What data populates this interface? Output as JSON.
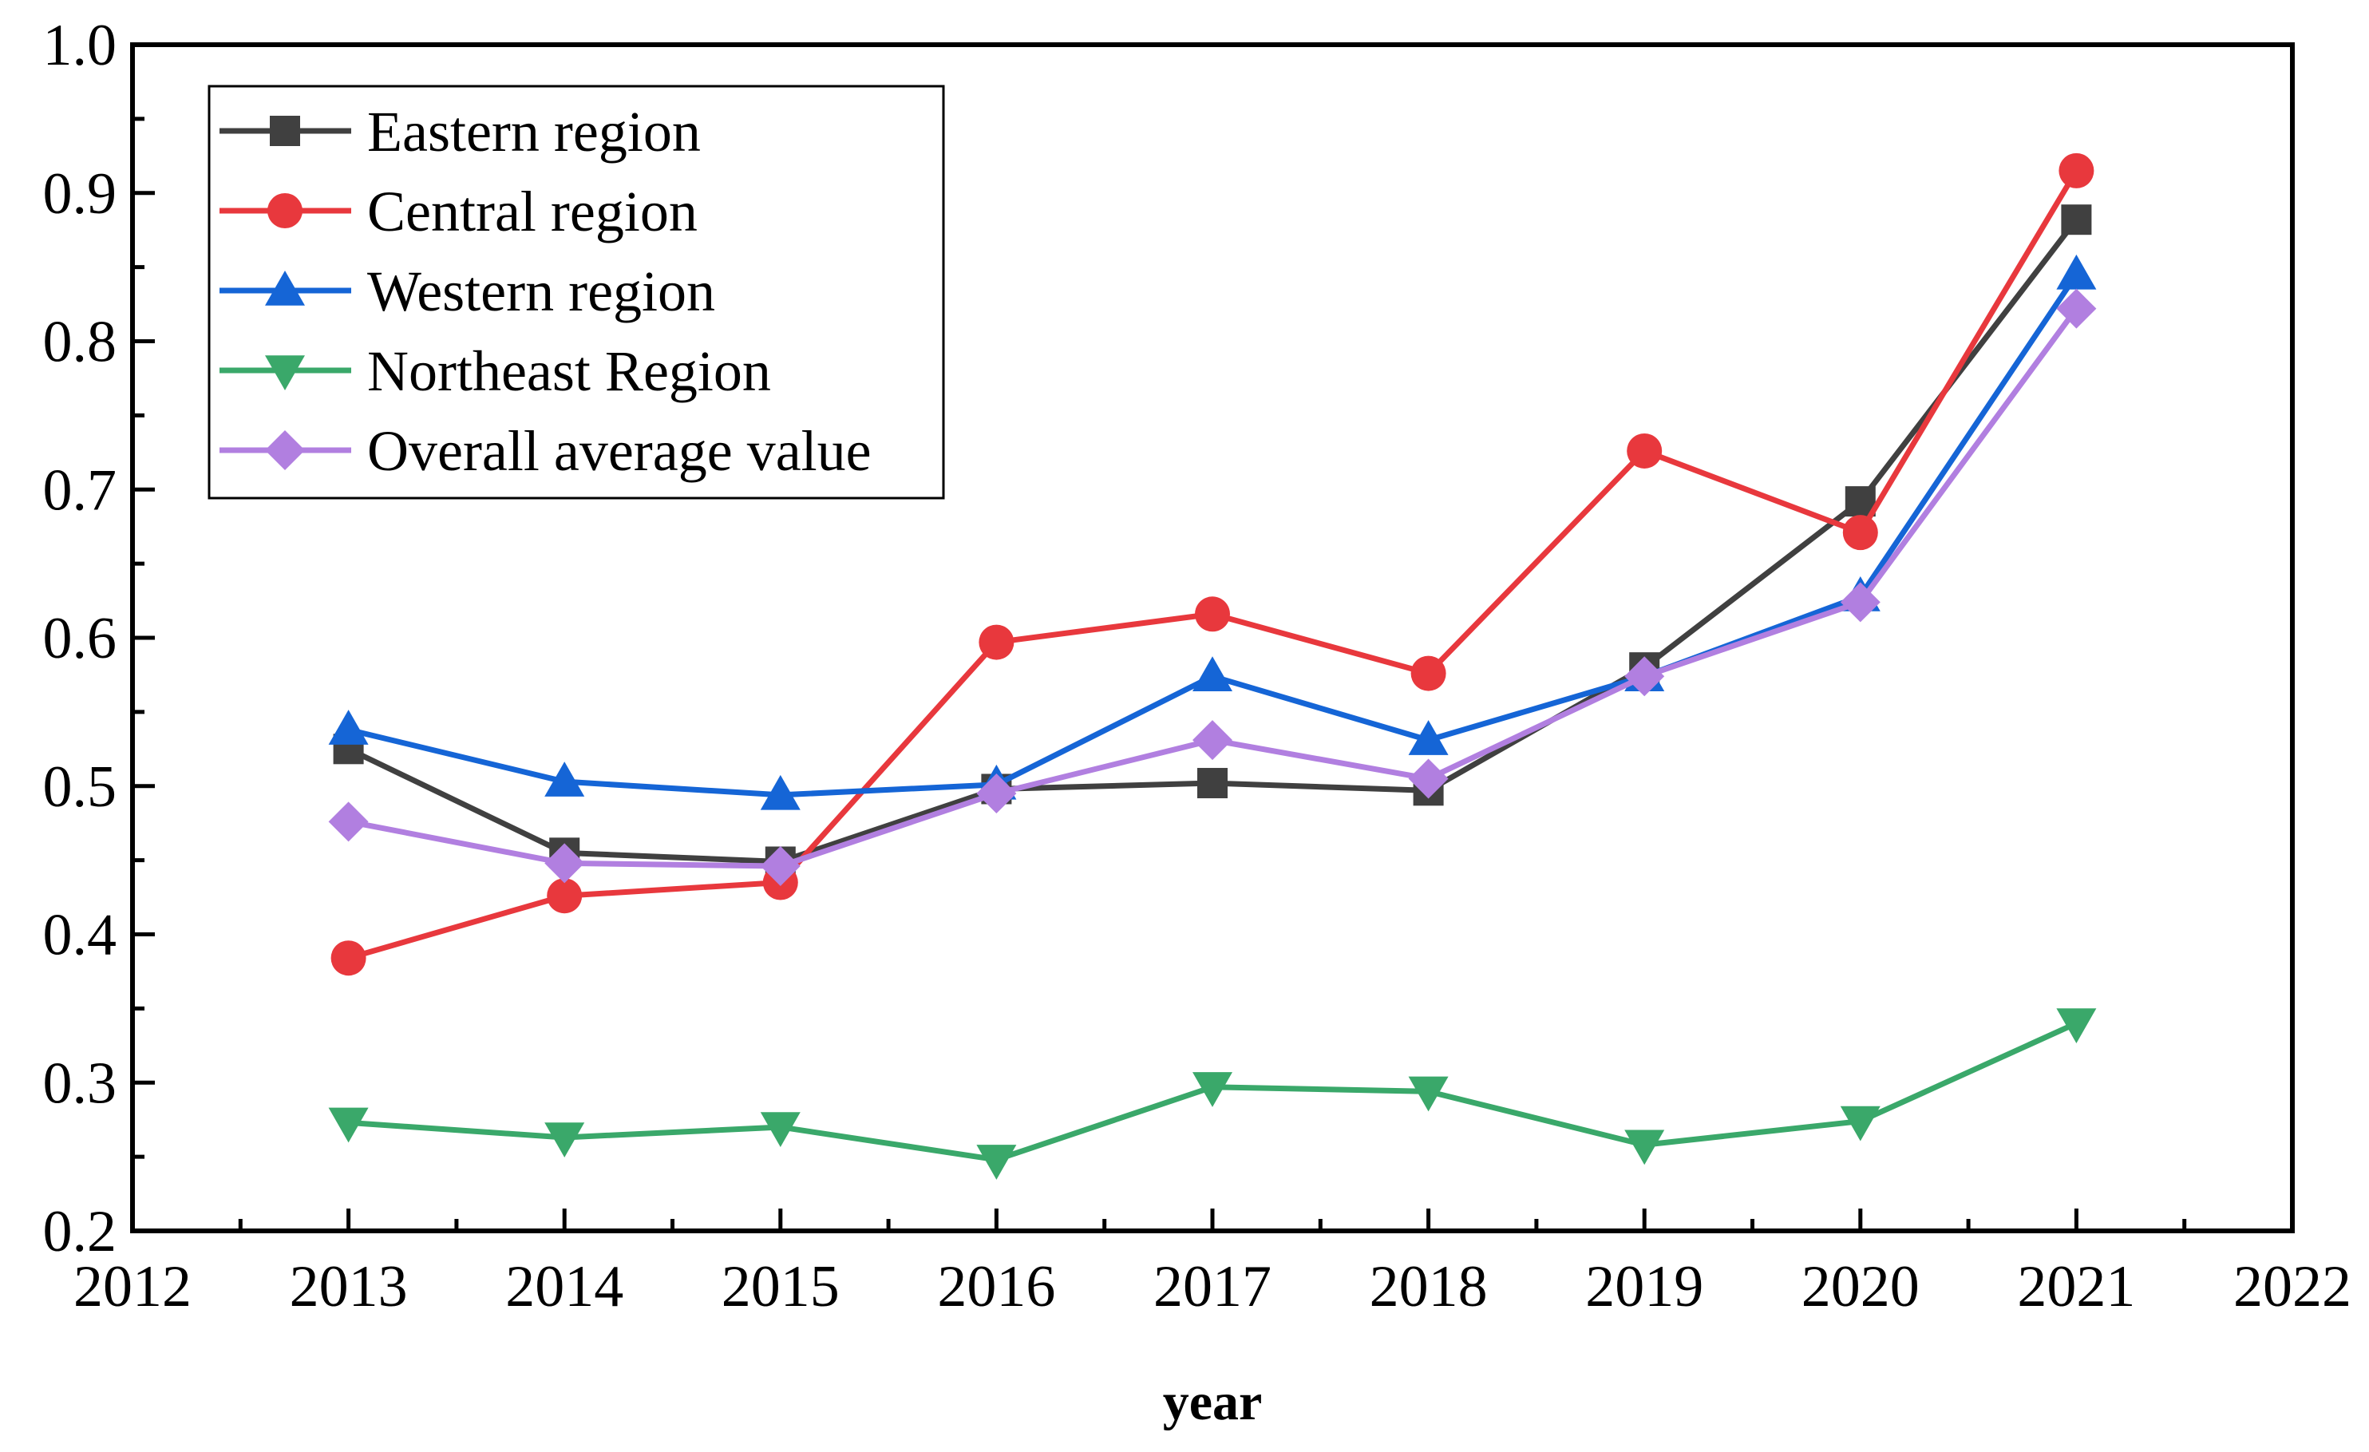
{
  "chart_data": {
    "type": "line",
    "title": "",
    "xlabel": "year",
    "ylabel": "",
    "xlim": [
      2012,
      2022
    ],
    "ylim": [
      0.2,
      1.0
    ],
    "x_ticks": [
      2012,
      2013,
      2014,
      2015,
      2016,
      2017,
      2018,
      2019,
      2020,
      2021,
      2022
    ],
    "y_ticks": [
      "0.2",
      "0.3",
      "0.4",
      "0.5",
      "0.6",
      "0.7",
      "0.8",
      "0.9",
      "1.0"
    ],
    "x": [
      2013,
      2014,
      2015,
      2016,
      2017,
      2018,
      2019,
      2020,
      2021
    ],
    "grid": false,
    "legend_position": "top-left",
    "series": [
      {
        "name": "Eastern region",
        "color": "#404040",
        "marker": "square",
        "values": [
          0.525,
          0.455,
          0.449,
          0.498,
          0.502,
          0.497,
          0.58,
          0.692,
          0.882
        ]
      },
      {
        "name": "Central region",
        "color": "#e8383d",
        "marker": "circle",
        "values": [
          0.384,
          0.426,
          0.435,
          0.597,
          0.616,
          0.576,
          0.726,
          0.671,
          0.915
        ]
      },
      {
        "name": "Western region",
        "color": "#1565d6",
        "marker": "triangle-up",
        "values": [
          0.538,
          0.503,
          0.494,
          0.501,
          0.574,
          0.531,
          0.574,
          0.628,
          0.845
        ]
      },
      {
        "name": "Northeast Region",
        "color": "#3aa86a",
        "marker": "triangle-down",
        "values": [
          0.273,
          0.263,
          0.27,
          0.248,
          0.297,
          0.294,
          0.258,
          0.274,
          0.34
        ]
      },
      {
        "name": "Overall average value",
        "color": "#b17fe0",
        "marker": "diamond",
        "values": [
          0.476,
          0.448,
          0.446,
          0.495,
          0.531,
          0.505,
          0.574,
          0.624,
          0.822
        ]
      }
    ]
  }
}
